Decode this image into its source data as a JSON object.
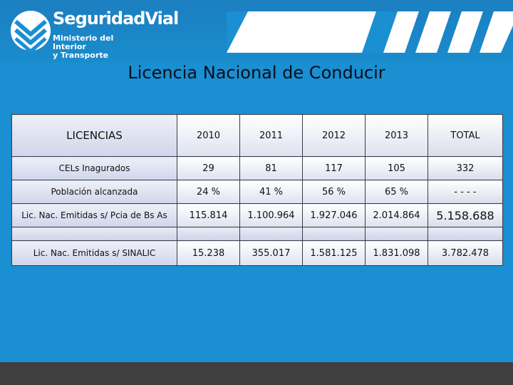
{
  "logo": {
    "brand": "SeguridadVial",
    "subtitle_line1": "Ministerio del Interior",
    "subtitle_line2": "y Transporte",
    "emblem_icon": "road-chevron-logo-icon"
  },
  "title": "Licencia Nacional de Conducir",
  "table": {
    "headers": [
      "LICENCIAS",
      "2010",
      "2011",
      "2012",
      "2013",
      "TOTAL"
    ],
    "rows": [
      {
        "label": "CELs Inagurados",
        "values": [
          "29",
          "81",
          "117",
          "105",
          "332"
        ]
      },
      {
        "label": "Población alcanzada",
        "values": [
          "24 %",
          "41 %",
          "56 %",
          "65 %",
          "- - - -"
        ]
      },
      {
        "label": "Lic. Nac. Emitidas s/ Pcia de Bs As",
        "values": [
          "115.814",
          "1.100.964",
          "1.927.046",
          "2.014.864",
          "5.158.688"
        ]
      },
      {
        "label": "Lic. Nac. Emitidas s/ SINALIC",
        "values": [
          "15.238",
          "355.017",
          "1.581.125",
          "1.831.098",
          "3.782.478"
        ]
      }
    ]
  },
  "colors": {
    "background": "#1a8fd1",
    "footer": "#3f3f3f",
    "cell_border": "#3a3a4a"
  }
}
